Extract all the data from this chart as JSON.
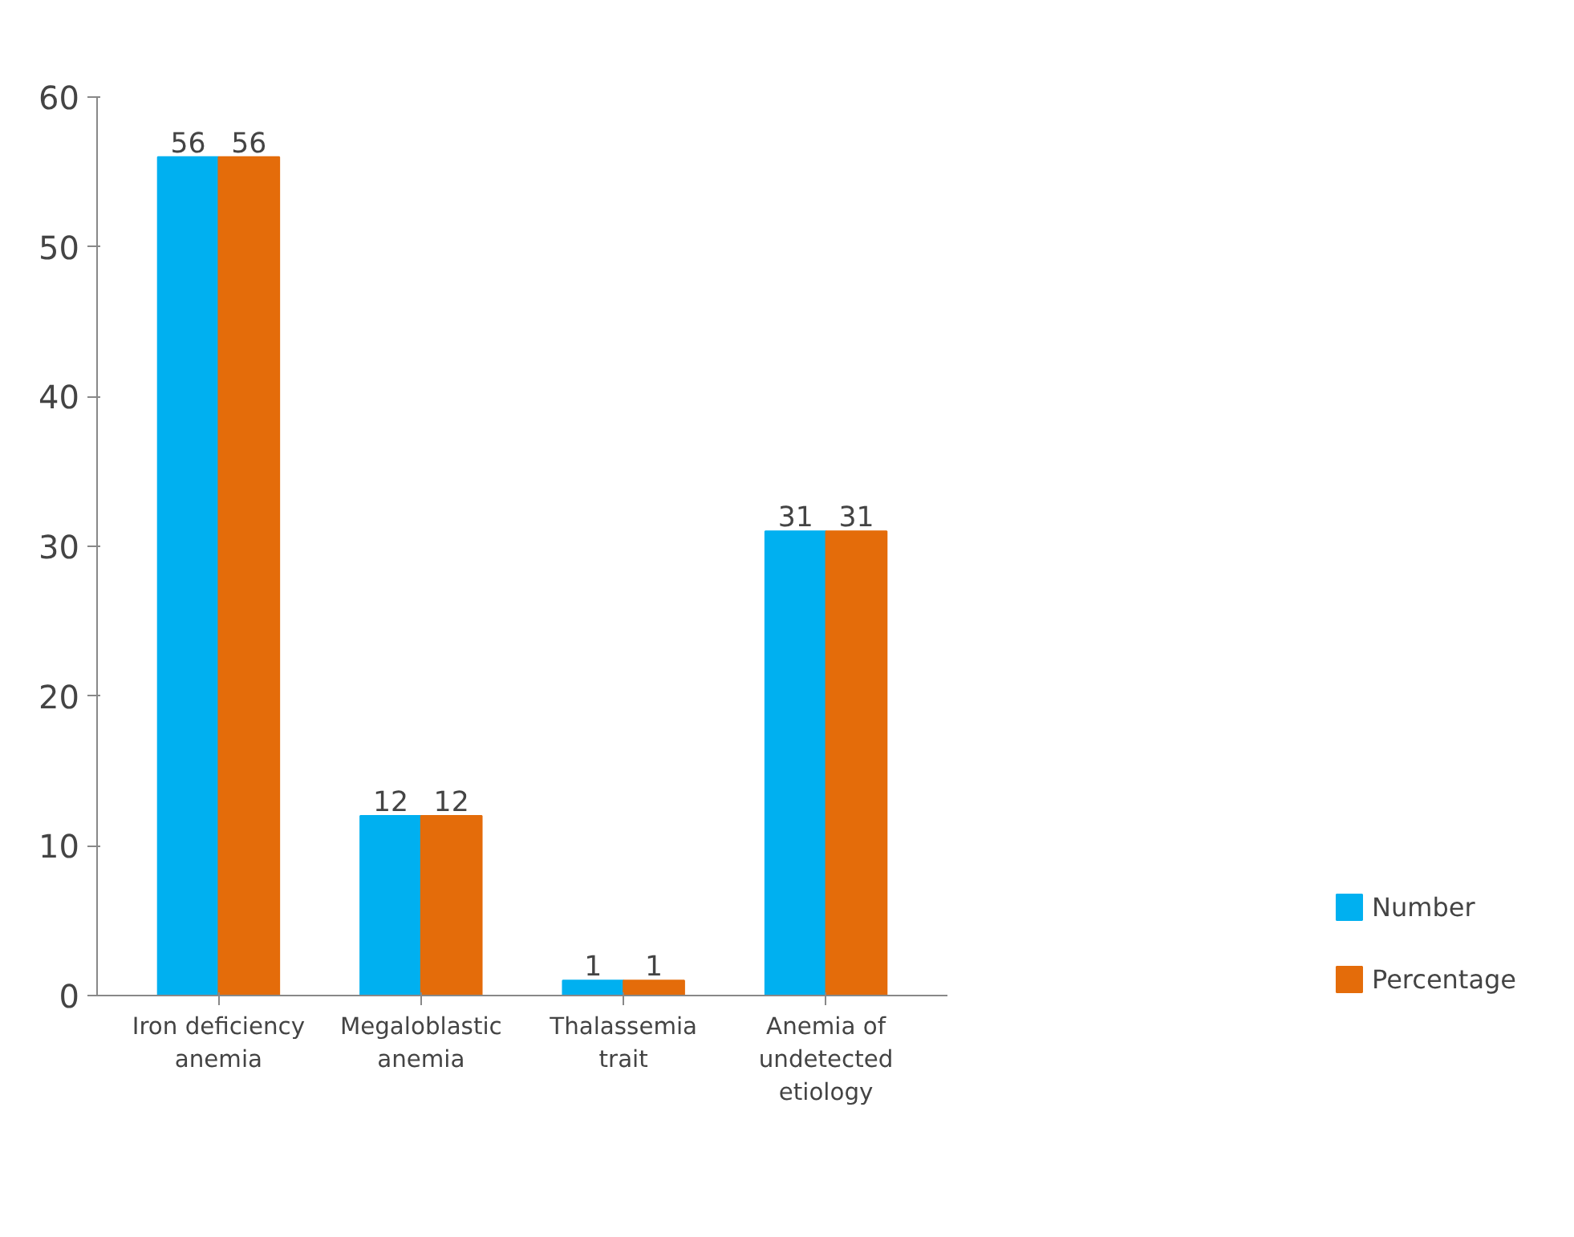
{
  "chart_data": {
    "type": "bar",
    "categories": [
      "Iron deficiency\nanemia",
      "Megaloblastic\nanemia",
      "Thalassemia\ntrait",
      "Anemia of\nundetected\netiology"
    ],
    "series": [
      {
        "name": "Number",
        "color": "#00b0f0",
        "values": [
          56,
          12,
          1,
          31
        ]
      },
      {
        "name": "Percentage",
        "color": "#e46c0a",
        "values": [
          56,
          12,
          1,
          31
        ]
      }
    ],
    "ylim": [
      0,
      60
    ],
    "yticks": [
      0,
      10,
      20,
      30,
      40,
      50,
      60
    ],
    "grid": false,
    "legend": "right",
    "data_labels": true
  }
}
